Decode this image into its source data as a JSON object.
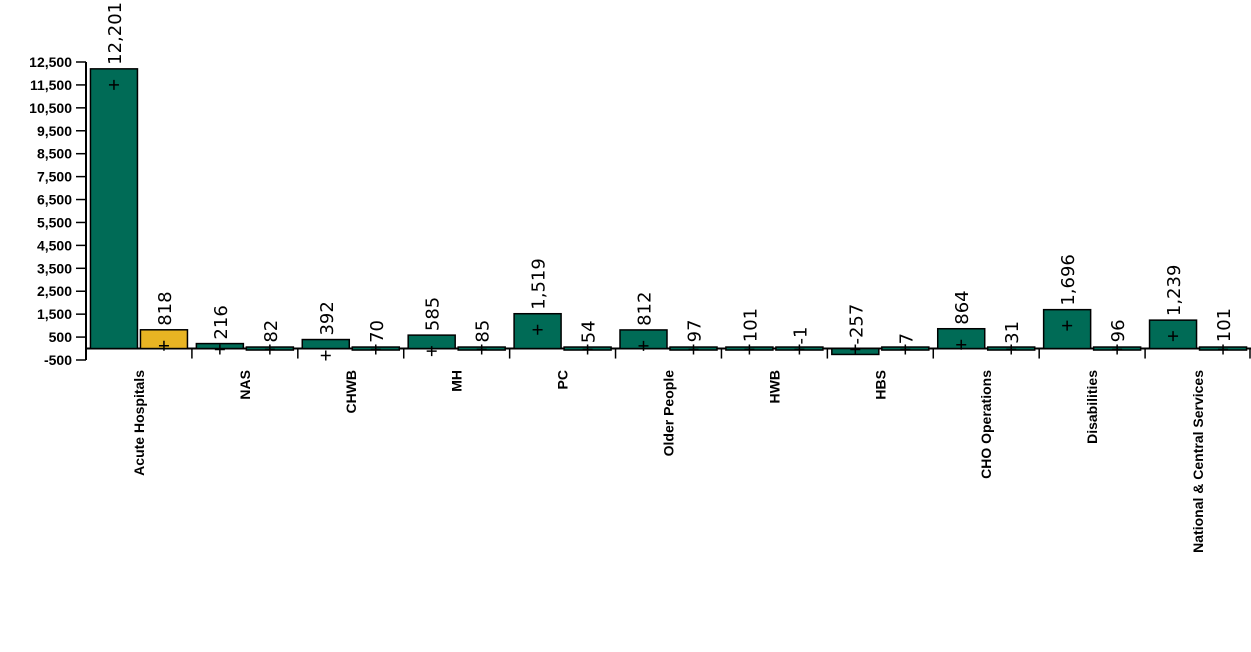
{
  "chart_data": {
    "type": "bar",
    "title": "",
    "xlabel": "",
    "ylabel": "",
    "ylim": [
      -500,
      12500
    ],
    "yticks": [
      -500,
      500,
      1500,
      2500,
      3500,
      4500,
      5500,
      6500,
      7500,
      8500,
      9500,
      10500,
      11500,
      12500
    ],
    "ytick_labels": [
      "-500",
      "500",
      "1,500",
      "2,500",
      "3,500",
      "4,500",
      "5,500",
      "6,500",
      "7,500",
      "8,500",
      "9,500",
      "10,500",
      "11,500",
      "12,500"
    ],
    "grid": false,
    "legend": "none",
    "categories": [
      "Acute Hospitals",
      "NAS",
      "CHWB",
      "MH",
      "PC",
      "Older People",
      "HWB",
      "HBS",
      "CHO Operations",
      "Disabilities",
      "National & Central Services"
    ],
    "series": [
      {
        "color": "#006B56",
        "values": [
          12201,
          216,
          392,
          585,
          1519,
          812,
          101,
          -257,
          864,
          1696,
          1239
        ],
        "labels": [
          "12,201",
          "216",
          "392",
          "585",
          "1,519",
          "812",
          "101",
          "-257",
          "864",
          "1,696",
          "1,239"
        ]
      },
      {
        "color": "#006B56",
        "highlight_color": "#E8B423",
        "highlight_index": 0,
        "values": [
          818,
          82,
          70,
          85,
          54,
          97,
          -1,
          7,
          31,
          96,
          101
        ],
        "labels": [
          "818",
          "82",
          "70",
          "85",
          "54",
          "97",
          "-1",
          "7",
          "31",
          "96",
          "101"
        ]
      }
    ]
  }
}
